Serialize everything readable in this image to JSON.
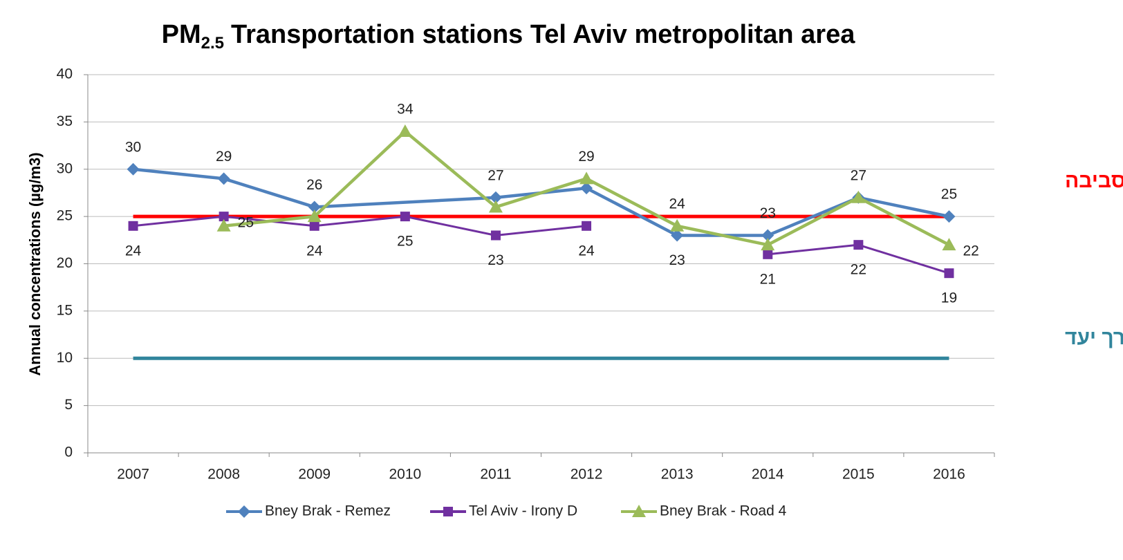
{
  "chart_data": {
    "type": "line",
    "title": {
      "main": "PM",
      "sub": "2.5",
      "rest": "Transportation stations Tel Aviv metropolitan area"
    },
    "y_label": "Annual concentrations (µg/m3)",
    "categories": [
      "2007",
      "2008",
      "2009",
      "2010",
      "2011",
      "2012",
      "2013",
      "2014",
      "2015",
      "2016"
    ],
    "ylim": [
      0,
      40
    ],
    "yticks": [
      0,
      5,
      10,
      15,
      20,
      25,
      30,
      35,
      40
    ],
    "grid": true,
    "legend": "bottom",
    "series": [
      {
        "name": "Bney Brak - Remez",
        "color": "#4f81bd",
        "marker": "diamond",
        "connect_gaps": true,
        "values": [
          30,
          29,
          26,
          null,
          27,
          28,
          23,
          23,
          27,
          25
        ],
        "value_labels": [
          "30",
          "29",
          "26",
          null,
          "27",
          null,
          "23",
          "23",
          "27",
          "25"
        ]
      },
      {
        "name": "Tel Aviv - Irony D",
        "color": "#7030a0",
        "marker": "square",
        "connect_gaps": false,
        "values": [
          24,
          25,
          24,
          25,
          23,
          24,
          null,
          21,
          22,
          19
        ],
        "value_labels": [
          "24",
          "25",
          "24",
          "25",
          "23",
          "24",
          null,
          "21",
          "22",
          "19"
        ]
      },
      {
        "name": "Bney Brak - Road 4",
        "color": "#9bbb59",
        "marker": "triangle",
        "connect_gaps": false,
        "values": [
          null,
          24,
          25,
          34,
          26,
          29,
          24,
          22,
          27,
          22
        ],
        "value_labels": [
          null,
          null,
          null,
          "34",
          null,
          "29",
          "24",
          null,
          null,
          "22"
        ]
      }
    ],
    "reference_lines": [
      {
        "value": 25,
        "label": "ערך סביבה",
        "color": "#ff0000"
      },
      {
        "value": 10,
        "label": "ערך יעד",
        "color": "#31859c"
      }
    ]
  }
}
